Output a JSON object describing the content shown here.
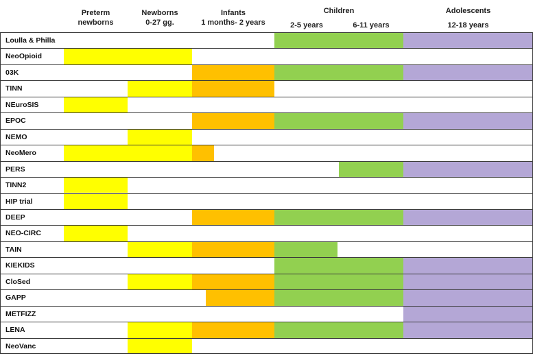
{
  "chart_data": {
    "type": "table",
    "title": "",
    "columns": [
      {
        "key": "preterm",
        "label": "Preterm newborns",
        "line1": "Preterm",
        "line2": "newborns"
      },
      {
        "key": "newborns",
        "label": "Newborns 0-27 gg.",
        "line1": "Newborns",
        "line2": "0-27 gg."
      },
      {
        "key": "infants",
        "label": "Infants 1 months- 2 years",
        "line1": "Infants",
        "line2": "1 months- 2 years"
      },
      {
        "key": "children",
        "label": "Children",
        "sub": [
          "2-5 years",
          "6-11 years"
        ]
      },
      {
        "key": "adolescents",
        "label": "Adolescents 12-18 years",
        "line1": "Adolescents",
        "line2": "12-18 years"
      }
    ],
    "segment_colors": {
      "preterm": "#ffff00",
      "newborns": "#ffff00",
      "infants": "#ffc000",
      "children": "#92d050",
      "adolescents": "#b4a7d6"
    },
    "unit": "coverage of age-group columns; 0 = start of Preterm newborns, 5 = end of Adolescents (Children spans 3-4)",
    "rows": [
      {
        "name": "Loulla & Philla",
        "segments": [
          {
            "group": "children",
            "start": 3,
            "end": 4
          },
          {
            "group": "adolescents",
            "start": 4,
            "end": 5
          }
        ]
      },
      {
        "name": "NeoOpioid",
        "segments": [
          {
            "group": "preterm",
            "start": 0,
            "end": 1
          },
          {
            "group": "newborns",
            "start": 1,
            "end": 2
          }
        ]
      },
      {
        "name": "03K",
        "segments": [
          {
            "group": "infants",
            "start": 2,
            "end": 3
          },
          {
            "group": "children",
            "start": 3,
            "end": 4
          },
          {
            "group": "adolescents",
            "start": 4,
            "end": 5
          }
        ]
      },
      {
        "name": "TINN",
        "segments": [
          {
            "group": "newborns",
            "start": 1,
            "end": 2
          },
          {
            "group": "infants",
            "start": 2,
            "end": 3
          }
        ]
      },
      {
        "name": "NEuroSIS",
        "segments": [
          {
            "group": "preterm",
            "start": 0,
            "end": 1
          }
        ]
      },
      {
        "name": "EPOC",
        "segments": [
          {
            "group": "infants",
            "start": 2,
            "end": 3
          },
          {
            "group": "children",
            "start": 3,
            "end": 4
          },
          {
            "group": "adolescents",
            "start": 4,
            "end": 5
          }
        ]
      },
      {
        "name": "NEMO",
        "segments": [
          {
            "group": "newborns",
            "start": 1,
            "end": 2
          }
        ]
      },
      {
        "name": "NeoMero",
        "segments": [
          {
            "group": "preterm",
            "start": 0,
            "end": 1
          },
          {
            "group": "newborns",
            "start": 1,
            "end": 2
          },
          {
            "group": "infants",
            "start": 2,
            "end": 2.27
          }
        ]
      },
      {
        "name": "PERS",
        "segments": [
          {
            "group": "children",
            "start": 3.5,
            "end": 4
          },
          {
            "group": "adolescents",
            "start": 4,
            "end": 5
          }
        ]
      },
      {
        "name": "TINN2",
        "segments": [
          {
            "group": "preterm",
            "start": 0,
            "end": 1
          }
        ]
      },
      {
        "name": "HIP trial",
        "segments": [
          {
            "group": "preterm",
            "start": 0,
            "end": 1
          }
        ]
      },
      {
        "name": "DEEP",
        "segments": [
          {
            "group": "infants",
            "start": 2,
            "end": 3
          },
          {
            "group": "children",
            "start": 3,
            "end": 4
          },
          {
            "group": "adolescents",
            "start": 4,
            "end": 5
          }
        ]
      },
      {
        "name": "NEO-CIRC",
        "segments": [
          {
            "group": "preterm",
            "start": 0,
            "end": 1
          }
        ]
      },
      {
        "name": "TAIN",
        "segments": [
          {
            "group": "newborns",
            "start": 1,
            "end": 2
          },
          {
            "group": "infants",
            "start": 2,
            "end": 3
          },
          {
            "group": "children",
            "start": 3,
            "end": 3.49
          }
        ]
      },
      {
        "name": "KIEKIDS",
        "segments": [
          {
            "group": "children",
            "start": 3,
            "end": 4
          },
          {
            "group": "adolescents",
            "start": 4,
            "end": 5
          }
        ]
      },
      {
        "name": "CloSed",
        "segments": [
          {
            "group": "newborns",
            "start": 1,
            "end": 2
          },
          {
            "group": "infants",
            "start": 2,
            "end": 3
          },
          {
            "group": "children",
            "start": 3,
            "end": 4
          },
          {
            "group": "adolescents",
            "start": 4,
            "end": 5
          }
        ]
      },
      {
        "name": "GAPP",
        "segments": [
          {
            "group": "infants",
            "start": 2.17,
            "end": 3
          },
          {
            "group": "children",
            "start": 3,
            "end": 4
          },
          {
            "group": "adolescents",
            "start": 4,
            "end": 5
          }
        ]
      },
      {
        "name": "METFIZZ",
        "segments": [
          {
            "group": "adolescents",
            "start": 4,
            "end": 5
          }
        ]
      },
      {
        "name": "LENA",
        "segments": [
          {
            "group": "newborns",
            "start": 1,
            "end": 2
          },
          {
            "group": "infants",
            "start": 2,
            "end": 3
          },
          {
            "group": "children",
            "start": 3,
            "end": 4
          },
          {
            "group": "adolescents",
            "start": 4,
            "end": 5
          }
        ]
      },
      {
        "name": "NeoVanc",
        "segments": [
          {
            "group": "newborns",
            "start": 1,
            "end": 2
          }
        ]
      }
    ]
  }
}
